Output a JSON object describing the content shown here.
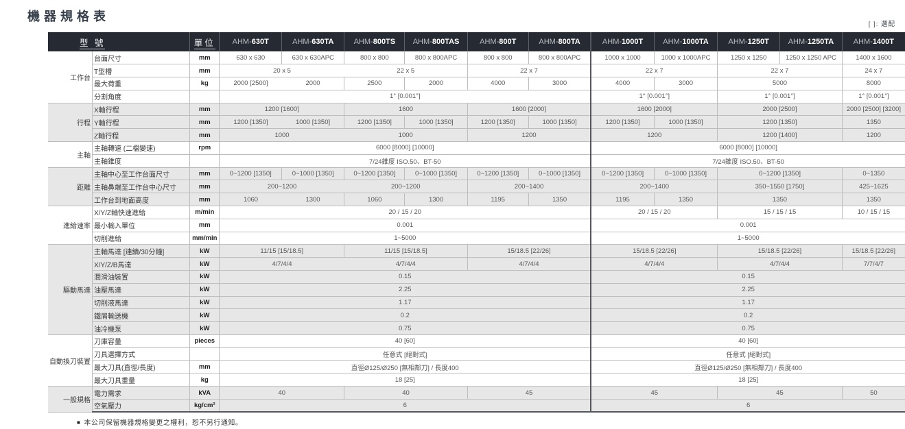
{
  "page": {
    "title": "機器規格表",
    "legend_note": "[ ]: 選配",
    "footnote_bullet": "■",
    "footnote": "本公司保留機器規格變更之權利，恕不另行通知。"
  },
  "colors": {
    "header_bg": "#262b33",
    "band_gray": "#e7e7e7",
    "border": "#bdbdbd",
    "divider_dark": "#53575d",
    "title_color": "#38404c"
  },
  "table": {
    "header": {
      "model_label": "型 號",
      "unit_label": "單位",
      "models": [
        {
          "prefix": "AHM-",
          "num": "630T"
        },
        {
          "prefix": "AHM-",
          "num": "630TA"
        },
        {
          "prefix": "AHM-",
          "num": "800TS"
        },
        {
          "prefix": "AHM-",
          "num": "800TAS"
        },
        {
          "prefix": "AHM-",
          "num": "800T"
        },
        {
          "prefix": "AHM-",
          "num": "800TA"
        },
        {
          "prefix": "AHM-",
          "num": "1000T"
        },
        {
          "prefix": "AHM-",
          "num": "1000TA"
        },
        {
          "prefix": "AHM-",
          "num": "1250T"
        },
        {
          "prefix": "AHM-",
          "num": "1250TA"
        },
        {
          "prefix": "AHM-",
          "num": "1400T"
        }
      ]
    },
    "groups": [
      {
        "label": "工作台",
        "shaded": false,
        "rows": [
          {
            "name": "台面尺寸",
            "unit": "mm",
            "cells": [
              {
                "v": "630 x 630",
                "s": 1
              },
              {
                "v": "630 x 630APC",
                "s": 1
              },
              {
                "v": "800 x 800",
                "s": 1
              },
              {
                "v": "800 x 800APC",
                "s": 1
              },
              {
                "v": "800 x 800",
                "s": 1
              },
              {
                "v": "800 x 800APC",
                "s": 1
              },
              {
                "v": "1000 x 1000",
                "s": 1
              },
              {
                "v": "1000 x 1000APC",
                "s": 1
              },
              {
                "v": "1250 x 1250",
                "s": 1
              },
              {
                "v": "1250 x 1250 APC",
                "s": 1
              },
              {
                "v": "1400 x 1600",
                "s": 1
              }
            ]
          },
          {
            "name": "T型槽",
            "unit": "mm",
            "cells": [
              {
                "v": "20 x 5",
                "s": 2
              },
              {
                "v": "22 x 5",
                "s": 2
              },
              {
                "v": "22 x 7",
                "s": 2
              },
              {
                "v": "22 x 7",
                "s": 2
              },
              {
                "v": "22 x 7",
                "s": 2
              },
              {
                "v": "24 x 7",
                "s": 1
              }
            ]
          },
          {
            "name": "最大荷重",
            "unit": "kg",
            "cells": [
              {
                "v": "2000 [2500]",
                "s": 1
              },
              {
                "v": "2000",
                "s": 1
              },
              {
                "v": "2500",
                "s": 1
              },
              {
                "v": "2000",
                "s": 1
              },
              {
                "v": "4000",
                "s": 1
              },
              {
                "v": "3000",
                "s": 1
              },
              {
                "v": "4000",
                "s": 1
              },
              {
                "v": "3000",
                "s": 1
              },
              {
                "v": "5000",
                "s": 2
              },
              {
                "v": "8000",
                "s": 1
              }
            ]
          },
          {
            "name": "分割角度",
            "unit": "",
            "cells": [
              {
                "v": "1° [0.001°]",
                "s": 6
              },
              {
                "v": "1° [0.001°]",
                "s": 2
              },
              {
                "v": "1° [0.001°]",
                "s": 2
              },
              {
                "v": "1° [0.001°]",
                "s": 1
              }
            ]
          }
        ]
      },
      {
        "label": "行程",
        "shaded": true,
        "rows": [
          {
            "name": "X軸行程",
            "unit": "mm",
            "cells": [
              {
                "v": "1200 [1600]",
                "s": 2
              },
              {
                "v": "1600",
                "s": 2
              },
              {
                "v": "1600 [2000]",
                "s": 2
              },
              {
                "v": "1600 [2000]",
                "s": 2
              },
              {
                "v": "2000 [2500]",
                "s": 2
              },
              {
                "v": "2000 [2500] [3200]",
                "s": 1
              }
            ]
          },
          {
            "name": "Y軸行程",
            "unit": "mm",
            "cells": [
              {
                "v": "1200 [1350]",
                "s": 1
              },
              {
                "v": "1000 [1350]",
                "s": 1
              },
              {
                "v": "1200 [1350]",
                "s": 1
              },
              {
                "v": "1000 [1350]",
                "s": 1
              },
              {
                "v": "1200 [1350]",
                "s": 1
              },
              {
                "v": "1000 [1350]",
                "s": 1
              },
              {
                "v": "1200 [1350]",
                "s": 1
              },
              {
                "v": "1000 [1350]",
                "s": 1
              },
              {
                "v": "1200 [1350]",
                "s": 2
              },
              {
                "v": "1350",
                "s": 1
              }
            ]
          },
          {
            "name": "Z軸行程",
            "unit": "mm",
            "cells": [
              {
                "v": "1000",
                "s": 2
              },
              {
                "v": "1000",
                "s": 2
              },
              {
                "v": "1200",
                "s": 2
              },
              {
                "v": "1200",
                "s": 2
              },
              {
                "v": "1200 [1400]",
                "s": 2
              },
              {
                "v": "1200",
                "s": 1
              }
            ]
          }
        ]
      },
      {
        "label": "主軸",
        "shaded": false,
        "rows": [
          {
            "name": "主軸轉速 (二檔變速)",
            "unit": "rpm",
            "cells": [
              {
                "v": "6000 [8000] [10000]",
                "s": 6
              },
              {
                "v": "6000 [8000] [10000]",
                "s": 5
              }
            ]
          },
          {
            "name": "主軸錐度",
            "unit": "",
            "cells": [
              {
                "v": "7/24錐度 ISO.50、BT-50",
                "s": 6
              },
              {
                "v": "7/24錐度 ISO.50、BT-50",
                "s": 5
              }
            ]
          }
        ]
      },
      {
        "label": "距離",
        "shaded": true,
        "rows": [
          {
            "name": "主軸中心至工作台面尺寸",
            "unit": "mm",
            "cells": [
              {
                "v": "0~1200 [1350]",
                "s": 1
              },
              {
                "v": "0~1000 [1350]",
                "s": 1
              },
              {
                "v": "0~1200 [1350]",
                "s": 1
              },
              {
                "v": "0~1000 [1350]",
                "s": 1
              },
              {
                "v": "0~1200 [1350]",
                "s": 1
              },
              {
                "v": "0~1000 [1350]",
                "s": 1
              },
              {
                "v": "0~1200 [1350]",
                "s": 1
              },
              {
                "v": "0~1000 [1350]",
                "s": 1
              },
              {
                "v": "0~1200 [1350]",
                "s": 2
              },
              {
                "v": "0~1350",
                "s": 1
              }
            ]
          },
          {
            "name": "主軸鼻端至工作台中心尺寸",
            "unit": "mm",
            "cells": [
              {
                "v": "200~1200",
                "s": 2
              },
              {
                "v": "200~1200",
                "s": 2
              },
              {
                "v": "200~1400",
                "s": 2
              },
              {
                "v": "200~1400",
                "s": 2
              },
              {
                "v": "350~1550 [1750]",
                "s": 2
              },
              {
                "v": "425~1625",
                "s": 1
              }
            ]
          },
          {
            "name": "工作台到地面高度",
            "unit": "mm",
            "cells": [
              {
                "v": "1060",
                "s": 1
              },
              {
                "v": "1300",
                "s": 1
              },
              {
                "v": "1060",
                "s": 1
              },
              {
                "v": "1300",
                "s": 1
              },
              {
                "v": "1195",
                "s": 1
              },
              {
                "v": "1350",
                "s": 1
              },
              {
                "v": "1195",
                "s": 1
              },
              {
                "v": "1350",
                "s": 1
              },
              {
                "v": "1350",
                "s": 2
              },
              {
                "v": "1350",
                "s": 1
              }
            ]
          }
        ]
      },
      {
        "label": "進給速率",
        "shaded": false,
        "rows": [
          {
            "name": "X/Y/Z軸快速進給",
            "unit": "m/min",
            "cells": [
              {
                "v": "20 / 15 / 20",
                "s": 6
              },
              {
                "v": "20 / 15 / 20",
                "s": 2
              },
              {
                "v": "15 / 15 / 15",
                "s": 2
              },
              {
                "v": "10 / 15 / 15",
                "s": 1
              }
            ]
          },
          {
            "name": "最小輸入單位",
            "unit": "mm",
            "cells": [
              {
                "v": "0.001",
                "s": 6
              },
              {
                "v": "0.001",
                "s": 5
              }
            ]
          },
          {
            "name": "切削進給",
            "unit": "mm/min",
            "cells": [
              {
                "v": "1~5000",
                "s": 6
              },
              {
                "v": "1~5000",
                "s": 5
              }
            ]
          }
        ]
      },
      {
        "label": "驅動馬達",
        "shaded": true,
        "rows": [
          {
            "name": "主軸馬達 [連續/30分鐘]",
            "unit": "kW",
            "cells": [
              {
                "v": "11/15 [15/18.5]",
                "s": 2
              },
              {
                "v": "11/15 [15/18.5]",
                "s": 2
              },
              {
                "v": "15/18.5 [22/26]",
                "s": 2
              },
              {
                "v": "15/18.5 [22/26]",
                "s": 2
              },
              {
                "v": "15/18.5 [22/26]",
                "s": 2
              },
              {
                "v": "15/18.5 [22/26]",
                "s": 1
              }
            ]
          },
          {
            "name": "X/Y/Z/B馬達",
            "unit": "kW",
            "cells": [
              {
                "v": "4/7/4/4",
                "s": 2
              },
              {
                "v": "4/7/4/4",
                "s": 2
              },
              {
                "v": "4/7/4/4",
                "s": 2
              },
              {
                "v": "4/7/4/4",
                "s": 2
              },
              {
                "v": "4/7/4/4",
                "s": 2
              },
              {
                "v": "7/7/4/7",
                "s": 1
              }
            ]
          },
          {
            "name": "潤滑油裝置",
            "unit": "kW",
            "cells": [
              {
                "v": "0.15",
                "s": 6
              },
              {
                "v": "0.15",
                "s": 5
              }
            ]
          },
          {
            "name": "油壓馬達",
            "unit": "kW",
            "cells": [
              {
                "v": "2.25",
                "s": 6
              },
              {
                "v": "2.25",
                "s": 5
              }
            ]
          },
          {
            "name": "切削液馬達",
            "unit": "kW",
            "cells": [
              {
                "v": "1.17",
                "s": 6
              },
              {
                "v": "1.17",
                "s": 5
              }
            ]
          },
          {
            "name": "鐵屑輸送機",
            "unit": "kW",
            "cells": [
              {
                "v": "0.2",
                "s": 6
              },
              {
                "v": "0.2",
                "s": 5
              }
            ]
          },
          {
            "name": "油冷機泵",
            "unit": "kW",
            "cells": [
              {
                "v": "0.75",
                "s": 6
              },
              {
                "v": "0.75",
                "s": 5
              }
            ]
          }
        ]
      },
      {
        "label": "自動換刀裝置",
        "shaded": false,
        "rows": [
          {
            "name": "刀庫容量",
            "unit": "pieces",
            "cells": [
              {
                "v": "40 [60]",
                "s": 6
              },
              {
                "v": "40 [60]",
                "s": 5
              }
            ]
          },
          {
            "name": "刀具選擇方式",
            "unit": "",
            "cells": [
              {
                "v": "任意式 [絕對式]",
                "s": 6
              },
              {
                "v": "任意式 [絕對式]",
                "s": 5
              }
            ]
          },
          {
            "name": "最大刀具(直徑/長度)",
            "unit": "mm",
            "cells": [
              {
                "v": "直徑Ø125/Ø250 [無相鄰刀] / 長度400",
                "s": 6
              },
              {
                "v": "直徑Ø125/Ø250 [無相鄰刀] / 長度400",
                "s": 5
              }
            ]
          },
          {
            "name": "最大刀具重量",
            "unit": "kg",
            "cells": [
              {
                "v": "18 [25]",
                "s": 6
              },
              {
                "v": "18 [25]",
                "s": 5
              }
            ]
          }
        ]
      },
      {
        "label": "一般規格",
        "shaded": true,
        "rows": [
          {
            "name": "電力需求",
            "unit": "kVA",
            "cells": [
              {
                "v": "40",
                "s": 2
              },
              {
                "v": "40",
                "s": 2
              },
              {
                "v": "45",
                "s": 2
              },
              {
                "v": "45",
                "s": 2
              },
              {
                "v": "45",
                "s": 2
              },
              {
                "v": "50",
                "s": 1
              }
            ]
          },
          {
            "name": "空氣壓力",
            "unit": "kg/cm²",
            "cells": [
              {
                "v": "6",
                "s": 6
              },
              {
                "v": "6",
                "s": 5
              }
            ]
          }
        ]
      }
    ]
  }
}
